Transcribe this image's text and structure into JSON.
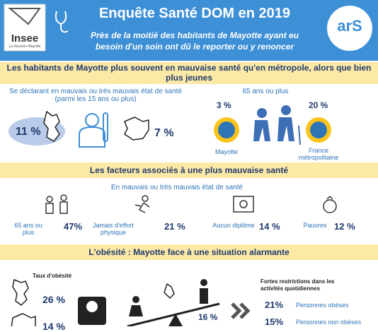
{
  "header": {
    "logo": "Insee",
    "logo_sub": "La Réunion-Mayotte",
    "title": "Enquête Santé DOM en 2019",
    "subtitle": "Près de la moitié des habitants de Mayotte ayant eu besoin d'un soin ont dû le reporter ou y renoncer",
    "ars": "arS"
  },
  "section1": {
    "heading": "Les habitants de Mayotte plus souvent en mauvaise santé qu'en métropole, alors que bien plus jeunes",
    "left_caption": "Se déclarant en mauvais ou très mauvais état de santé (parmi les 15 ans ou plus)",
    "mayotte_value": "11 %",
    "france_value": "7 %",
    "right_caption": "65 ans ou plus",
    "mayotte_65_value": "3 %",
    "mayotte_label": "Mayotte",
    "france_65_value": "20 %",
    "france_label": "France métropolitaine"
  },
  "section2": {
    "heading": "Les facteurs associés à une plus mauvaise santé",
    "caption": "En mauvais ou très mauvais état de santé",
    "factors": [
      {
        "label": "65 ans ou plus",
        "value": "47%"
      },
      {
        "label": "Jamais d'effort physique",
        "value": "21 %"
      },
      {
        "label": "Aucun diplôme",
        "value": "14 %"
      },
      {
        "label": "Pauvres",
        "value": "12 %"
      }
    ]
  },
  "section3": {
    "heading": "L'obésité : Mayotte face à une situation alarmante",
    "rate_label": "Taux d'obésité",
    "mayotte_value": "26 %",
    "france_value": "14 %",
    "seesaw_value": "16 %",
    "restrictions_title": "Fortes restrictions dans les activités quotidiennes",
    "restrictions": [
      {
        "value": "21%",
        "label": "Personnes obèses"
      },
      {
        "value": "15%",
        "label": "Personnes non obèses"
      }
    ]
  }
}
